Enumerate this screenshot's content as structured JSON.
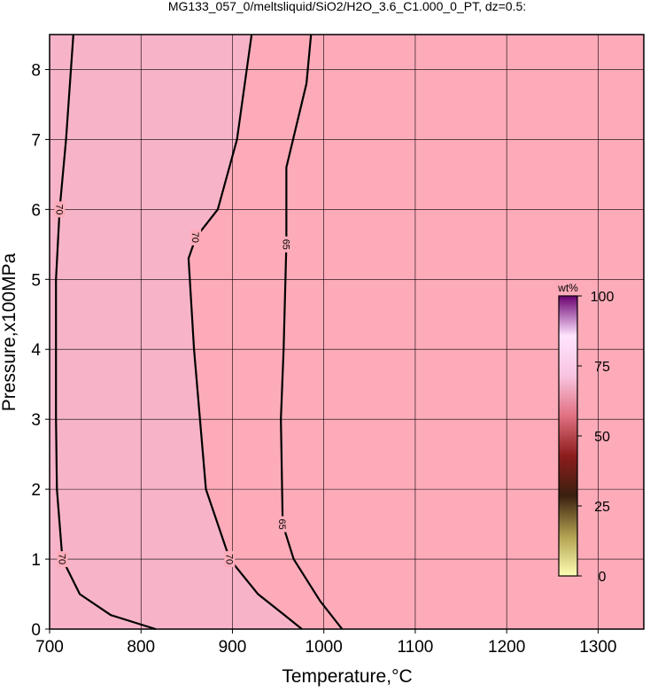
{
  "chart_data": {
    "type": "contour",
    "title": "MG133_057_0/meltsliquid/SiO2/H2O_3.6_C1.000_0_PT, dz=0.5:",
    "x_label": "Temperature,°C",
    "y_label": "Pressure,x100MPa",
    "xlim": [
      700,
      1350
    ],
    "ylim": [
      0,
      8.5
    ],
    "xticks": [
      700,
      800,
      900,
      1000,
      1100,
      1200,
      1300
    ],
    "yticks": [
      0,
      1,
      2,
      3,
      4,
      5,
      6,
      7,
      8
    ],
    "grid": true,
    "background_color": "#fdabb9",
    "inner_color": "#f7b4c9",
    "line_color": "#000000",
    "series": [
      {
        "level": 70,
        "x": [
          726,
          718,
          711,
          707,
          707,
          708,
          714,
          733,
          767,
          816
        ],
        "y": [
          8.5,
          7,
          6,
          5,
          3,
          2,
          1,
          0.5,
          0.2,
          0
        ]
      },
      {
        "level": 70,
        "x": [
          921,
          905,
          884,
          860,
          852,
          858,
          871,
          897,
          928,
          957,
          976
        ],
        "y": [
          8.5,
          7,
          6,
          5.6,
          5.3,
          4,
          2,
          1,
          0.5,
          0.2,
          0
        ]
      },
      {
        "level": 65,
        "x": [
          986,
          981,
          959,
          959,
          956,
          953,
          955,
          967,
          996,
          1020
        ],
        "y": [
          8.5,
          7.8,
          6.6,
          5.5,
          4,
          3,
          1.5,
          1,
          0.4,
          0
        ]
      }
    ],
    "colorbar": {
      "label": "wt%",
      "clim": [
        0,
        100
      ],
      "ticks": [
        0,
        25,
        50,
        75,
        100
      ],
      "colormap": [
        "#ffffb4",
        "#b0a050",
        "#3a2010",
        "#8c1c1c",
        "#e07080",
        "#f8c4e0",
        "#ffe4ff",
        "#6a0070"
      ]
    }
  }
}
